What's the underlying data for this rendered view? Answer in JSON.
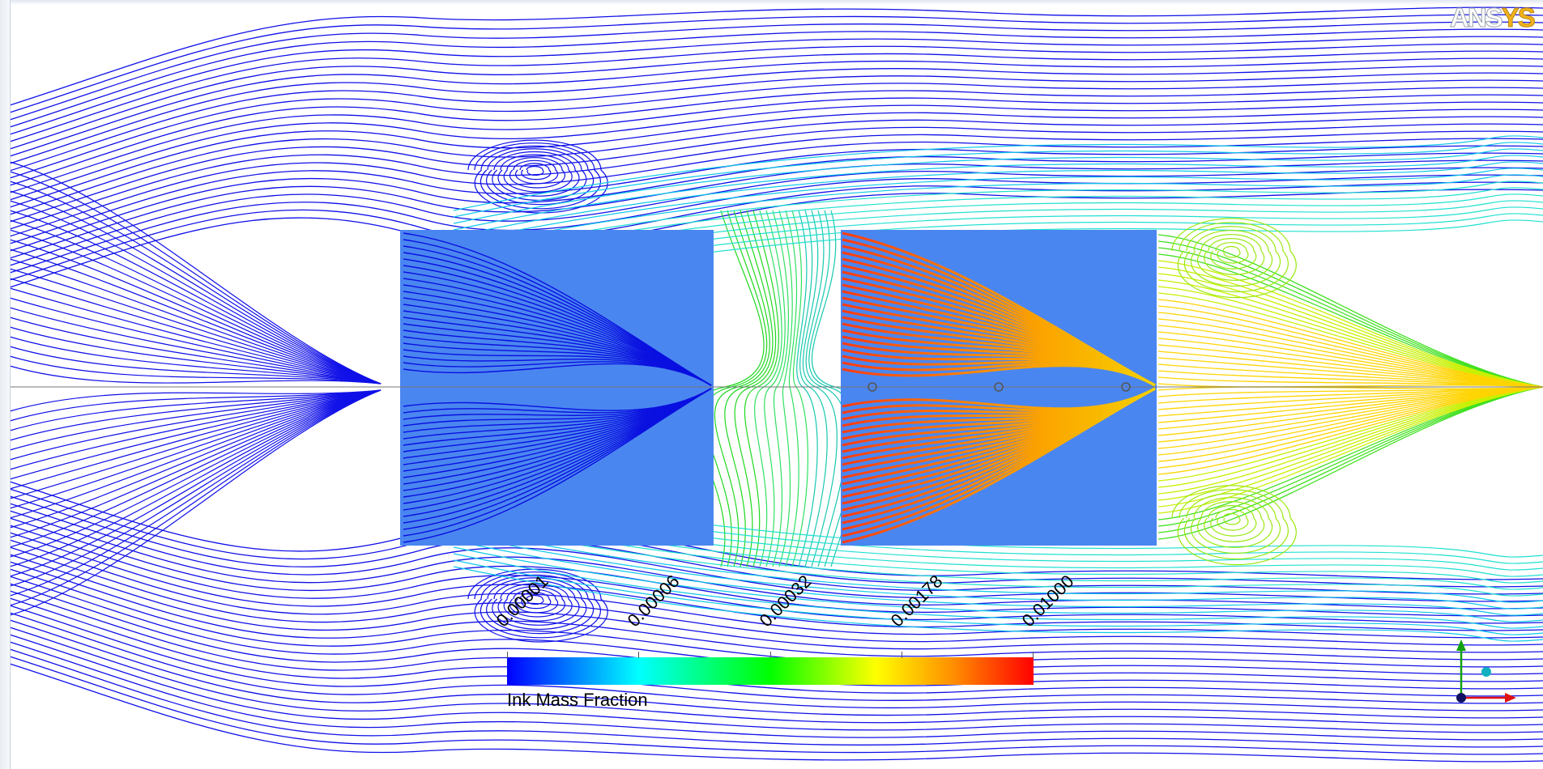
{
  "logo": {
    "text_a": "ANS",
    "text_b": "YS"
  },
  "legend": {
    "title": "Ink Mass Fraction",
    "ticks": [
      "0.00001",
      "0.00006",
      "0.00032",
      "0.00178",
      "0.01000"
    ],
    "colors": [
      "#0000ff",
      "#00ffff",
      "#00ff00",
      "#ffff00",
      "#ff8c00",
      "#ff0000"
    ]
  },
  "colors": {
    "body_fill_left": "#4a86f0",
    "outer_streamlines": "#1010e8",
    "background": "#ffffff"
  },
  "triad": {
    "x_color": "#e01010",
    "y_color": "#10a010",
    "z_color": "#10b0c0"
  }
}
